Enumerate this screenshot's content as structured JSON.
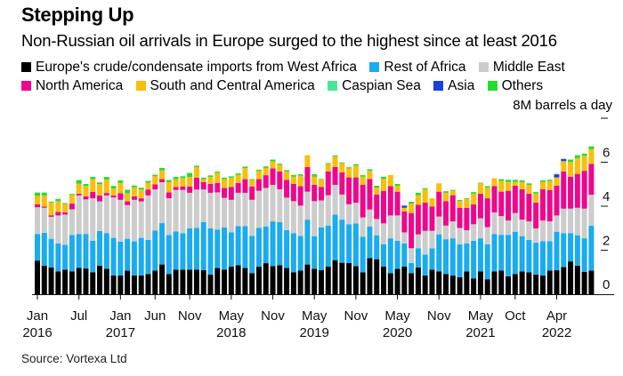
{
  "header": {
    "title": "Stepping Up",
    "subtitle": "Non-Russian oil arrivals in Europe surged to the highest since at least 2016"
  },
  "legend": [
    {
      "label": "Europe's crude/condensate imports from West Africa",
      "color": "#000000"
    },
    {
      "label": "Rest of Africa",
      "color": "#1aabf0"
    },
    {
      "label": "Middle East",
      "color": "#cccccc"
    },
    {
      "label": "North America",
      "color": "#f0068c"
    },
    {
      "label": "South and Central America",
      "color": "#fbbe0c"
    },
    {
      "label": "Caspian Sea",
      "color": "#4be598"
    },
    {
      "label": "Asia",
      "color": "#1a40e0"
    },
    {
      "label": "Others",
      "color": "#22dd2e"
    }
  ],
  "unit_label": "8M barrels a day",
  "source": "Source: Vortexa Ltd",
  "chart_data": {
    "type": "bar",
    "stacked": true,
    "title": "Stepping Up",
    "subtitle": "Non-Russian oil arrivals in Europe surged to the highest since at least 2016",
    "xlabel": "",
    "ylabel": "M barrels a day",
    "ylim": [
      0,
      8
    ],
    "yticks": [
      0,
      2,
      4,
      6,
      8
    ],
    "ytick_labels": [
      "0",
      "2",
      "4",
      "6",
      "8M barrels a day"
    ],
    "grid": false,
    "x_start": "2016-01",
    "x_frequency": "monthly",
    "xtick_labels": [
      {
        "index": 0,
        "month": "Jan",
        "year": "2016"
      },
      {
        "index": 6,
        "month": "Jul",
        "year": ""
      },
      {
        "index": 12,
        "month": "Jan",
        "year": "2017"
      },
      {
        "index": 17,
        "month": "Jun",
        "year": ""
      },
      {
        "index": 22,
        "month": "Nov",
        "year": ""
      },
      {
        "index": 28,
        "month": "May",
        "year": "2018"
      },
      {
        "index": 34,
        "month": "Nov",
        "year": ""
      },
      {
        "index": 40,
        "month": "May",
        "year": "2019"
      },
      {
        "index": 46,
        "month": "Nov",
        "year": ""
      },
      {
        "index": 52,
        "month": "May",
        "year": "2020"
      },
      {
        "index": 58,
        "month": "Nov",
        "year": ""
      },
      {
        "index": 64,
        "month": "May",
        "year": "2021"
      },
      {
        "index": 69,
        "month": "Oct",
        "year": ""
      },
      {
        "index": 75,
        "month": "Apr",
        "year": "2022"
      }
    ],
    "series": [
      {
        "name": "Europe's crude/condensate imports from West Africa",
        "color": "#000000",
        "values": [
          1.53,
          1.3,
          1.22,
          1.03,
          1.12,
          1.04,
          1.2,
          1.17,
          1.0,
          1.3,
          1.16,
          0.85,
          0.85,
          1.08,
          0.85,
          0.85,
          0.92,
          1.08,
          1.35,
          0.92,
          1.12,
          1.12,
          1.12,
          1.12,
          1.09,
          0.89,
          1.19,
          1.12,
          1.25,
          1.32,
          1.19,
          0.96,
          1.25,
          1.41,
          1.28,
          1.32,
          1.19,
          0.99,
          1.08,
          1.35,
          1.16,
          1.09,
          1.26,
          1.55,
          1.43,
          1.42,
          1.28,
          0.99,
          1.64,
          1.59,
          1.26,
          0.96,
          1.15,
          1.26,
          0.95,
          1.22,
          0.85,
          1.12,
          1.04,
          0.92,
          0.85,
          0.77,
          1.03,
          0.72,
          1.03,
          0.68,
          1.03,
          1.08,
          0.81,
          0.92,
          1.03,
          0.99,
          0.89,
          0.85,
          1.08,
          1.09,
          1.23,
          1.49,
          1.3,
          1.01,
          1.08
        ]
      },
      {
        "name": "Rest of Africa",
        "color": "#1aabf0",
        "values": [
          1.21,
          1.49,
          1.3,
          1.28,
          1.13,
          1.65,
          1.54,
          1.57,
          1.43,
          1.57,
          1.62,
          1.71,
          1.54,
          1.44,
          1.55,
          1.71,
          1.55,
          1.82,
          1.88,
          1.77,
          1.73,
          1.65,
          1.87,
          1.89,
          2.19,
          2.1,
          1.75,
          1.92,
          1.56,
          1.77,
          1.9,
          1.69,
          1.76,
          1.67,
          2.03,
          1.96,
          1.72,
          1.78,
          1.57,
          2.04,
          1.48,
          1.95,
          1.86,
          2.07,
          1.96,
          1.76,
          1.94,
          1.62,
          1.44,
          1.09,
          1.01,
          1.58,
          1.28,
          1.05,
          0.47,
          0.87,
          0.95,
          0.97,
          1.68,
          1.58,
          1.69,
          1.5,
          1.28,
          1.71,
          1.51,
          1.59,
          1.71,
          1.62,
          1.89,
          1.92,
          1.61,
          1.48,
          1.45,
          1.56,
          1.33,
          1.75,
          1.54,
          1.29,
          1.38,
          1.53,
          2.03
        ]
      },
      {
        "name": "Middle East",
        "color": "#cccccc",
        "values": [
          1.21,
          1.14,
          1.0,
          1.27,
          1.37,
          1.17,
          1.75,
          1.57,
          1.93,
          1.35,
          1.71,
          1.84,
          1.9,
          1.53,
          1.89,
          1.66,
          2.02,
          1.86,
          1.86,
          1.67,
          1.89,
          1.97,
          1.62,
          1.75,
          1.48,
          1.62,
          1.69,
          1.34,
          1.48,
          1.52,
          1.52,
          1.64,
          1.69,
          1.75,
          1.66,
          1.49,
          1.48,
          1.46,
          1.38,
          1.27,
          1.59,
          1.22,
          1.38,
          1.35,
          1.14,
          0.91,
          0.94,
          0.88,
          0.77,
          0.74,
          0.95,
          1.04,
          1.15,
          0.5,
          0.67,
          0.63,
          1.08,
          0.79,
          0.81,
          0.62,
          0.77,
          0.74,
          0.6,
          0.75,
          0.91,
          0.78,
          0.98,
          0.85,
          0.65,
          0.85,
          0.75,
          0.84,
          0.65,
          0.94,
          0.9,
          0.74,
          1.12,
          1.11,
          1.25,
          1.35,
          1.41
        ]
      },
      {
        "name": "North America",
        "color": "#f0068c",
        "values": [
          0.14,
          0.05,
          0.07,
          0.16,
          0.1,
          0.26,
          0.08,
          0.14,
          0.29,
          0.27,
          0.11,
          0.09,
          0.3,
          0.17,
          0.16,
          0.14,
          0.27,
          0.23,
          0.14,
          0.27,
          0.13,
          0.16,
          0.29,
          0.54,
          0.34,
          0.4,
          0.43,
          0.45,
          0.58,
          0.45,
          0.62,
          0.61,
          0.53,
          0.58,
          0.75,
          0.81,
          0.81,
          0.78,
          0.88,
          1.12,
          0.74,
          0.62,
          1.08,
          0.81,
          1.01,
          1.22,
          1.15,
          1.48,
          1.39,
          1.11,
          1.48,
          1.33,
          1.08,
          0.95,
          1.6,
          1.35,
          1.28,
          1.11,
          1.13,
          1.11,
          1.19,
          0.92,
          1.02,
          0.91,
          1.12,
          1.31,
          1.19,
          1.11,
          1.35,
          1.24,
          1.38,
          1.26,
          1.17,
          1.42,
          1.43,
          1.35,
          1.69,
          1.45,
          1.54,
          1.72,
          1.4
        ]
      },
      {
        "name": "South and Central America",
        "color": "#fbbe0c",
        "values": [
          0.38,
          0.51,
          0.58,
          0.49,
          0.38,
          0.4,
          0.46,
          0.47,
          0.58,
          0.51,
          0.61,
          0.31,
          0.47,
          0.37,
          0.41,
          0.4,
          0.31,
          0.37,
          0.4,
          0.47,
          0.36,
          0.38,
          0.43,
          0.47,
          0.13,
          0.32,
          0.45,
          0.4,
          0.43,
          0.36,
          0.5,
          0.29,
          0.37,
          0.33,
          0.32,
          0.3,
          0.38,
          0.33,
          0.47,
          0.54,
          0.37,
          0.32,
          0.34,
          0.48,
          0.41,
          0.41,
          0.54,
          0.37,
          0.37,
          0.31,
          0.54,
          0.51,
          0.27,
          0.17,
          0.43,
          0.43,
          0.61,
          0.37,
          0.38,
          0.38,
          0.2,
          0.3,
          0.39,
          0.48,
          0.47,
          0.48,
          0.36,
          0.49,
          0.41,
          0.18,
          0.34,
          0.4,
          0.41,
          0.34,
          0.4,
          0.38,
          0.47,
          0.67,
          0.72,
          0.69,
          0.67
        ]
      },
      {
        "name": "Caspian Sea",
        "color": "#4be598",
        "values": [
          0,
          0,
          0,
          0,
          0,
          0,
          0,
          0,
          0,
          0,
          0,
          0,
          0,
          0,
          0,
          0,
          0,
          0,
          0,
          0,
          0,
          0,
          0,
          0,
          0,
          0,
          0,
          0,
          0,
          0,
          0,
          0,
          0,
          0,
          0,
          0,
          0,
          0,
          0,
          0,
          0,
          0,
          0,
          0,
          0,
          0,
          0,
          0,
          0,
          0,
          0,
          0,
          0,
          0,
          0,
          0,
          0,
          0,
          0,
          0,
          0,
          0,
          0,
          0,
          0,
          0,
          0,
          0,
          0,
          0,
          0,
          0,
          0,
          0,
          0,
          0,
          0,
          0,
          0,
          0,
          0
        ]
      },
      {
        "name": "Asia",
        "color": "#1a40e0",
        "values": [
          0,
          0,
          0,
          0,
          0,
          0,
          0,
          0,
          0,
          0,
          0,
          0,
          0,
          0,
          0,
          0,
          0,
          0,
          0,
          0,
          0,
          0,
          0,
          0,
          0,
          0,
          0,
          0,
          0,
          0,
          0,
          0,
          0,
          0,
          0,
          0,
          0,
          0,
          0,
          0,
          0,
          0,
          0,
          0,
          0,
          0,
          0,
          0,
          0,
          0,
          0,
          0,
          0,
          0.1,
          0,
          0,
          0,
          0,
          0,
          0,
          0,
          0,
          0,
          0,
          0,
          0,
          0,
          0,
          0,
          0,
          0,
          0,
          0,
          0,
          0,
          0.14,
          0.1,
          0,
          0,
          0,
          0
        ]
      },
      {
        "name": "Others",
        "color": "#22dd2e",
        "values": [
          0.15,
          0.13,
          0.04,
          0.1,
          0.04,
          0.04,
          0.16,
          0.09,
          0.1,
          0.08,
          0.12,
          0.12,
          0.11,
          0.16,
          0.08,
          0.08,
          0.08,
          0.07,
          0.11,
          0.09,
          0.1,
          0.08,
          0.18,
          0.07,
          0.07,
          0.07,
          0.06,
          0.07,
          0.06,
          0.07,
          0.07,
          0.04,
          0.06,
          0.07,
          0.08,
          0.05,
          0.06,
          0.08,
          0.07,
          0,
          0.11,
          0.04,
          0.04,
          0.05,
          0.04,
          0.05,
          0.06,
          0.07,
          0.07,
          0.09,
          0.1,
          0,
          0.08,
          0,
          0.08,
          0.11,
          0.05,
          0,
          0,
          0.07,
          0.04,
          0.05,
          0.04,
          0.07,
          0.03,
          0.07,
          0,
          0.08,
          0.09,
          0.09,
          0.07,
          0.07,
          0.07,
          0.07,
          0.06,
          0.02,
          0,
          0.11,
          0.13,
          0.09,
          0.13
        ]
      }
    ]
  }
}
